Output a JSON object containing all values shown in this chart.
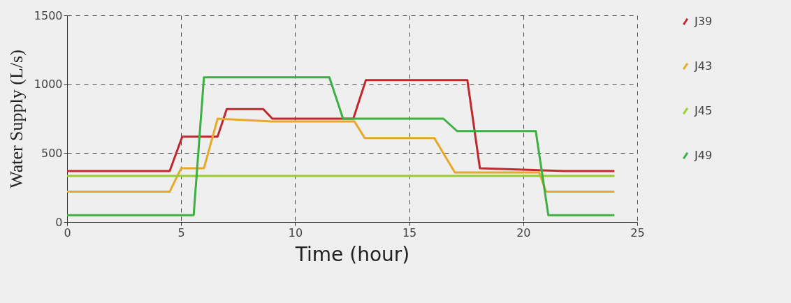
{
  "chart_data": {
    "type": "line",
    "xlabel": "Time (hour)",
    "ylabel": "Water Supply (L/s)",
    "xlim": [
      0,
      25
    ],
    "xticks": [
      0,
      5,
      10,
      15,
      20,
      25
    ],
    "ylim": [
      0,
      1500
    ],
    "yticks": [
      0,
      500,
      1000,
      1500
    ],
    "grid": true,
    "legend": "right",
    "line_style": "solid",
    "marker": "none",
    "series": [
      {
        "name": "J39",
        "color": "#c0282e",
        "x": [
          0,
          4.5,
          5.05,
          6.6,
          7.0,
          8.6,
          9.0,
          12.55,
          13.1,
          17.55,
          18.1,
          21.8,
          24
        ],
        "values": [
          370,
          370,
          620,
          620,
          820,
          820,
          750,
          750,
          1030,
          1030,
          390,
          370,
          370
        ]
      },
      {
        "name": "J43",
        "color": "#e8a92a",
        "x": [
          0,
          4.5,
          5.0,
          6.0,
          6.6,
          9.0,
          12.6,
          13.05,
          16.1,
          17.0,
          20.7,
          21.0,
          24
        ],
        "values": [
          220,
          220,
          390,
          390,
          750,
          730,
          730,
          610,
          610,
          360,
          360,
          220,
          220
        ]
      },
      {
        "name": "J45",
        "color": "#9acd32",
        "x": [
          0,
          24
        ],
        "values": [
          335,
          335
        ]
      },
      {
        "name": "J49",
        "color": "#3cb043",
        "x": [
          0,
          5.55,
          6.0,
          11.5,
          12.1,
          16.5,
          17.1,
          20.55,
          21.1,
          24
        ],
        "values": [
          50,
          50,
          1050,
          1050,
          750,
          750,
          660,
          660,
          50,
          50
        ]
      }
    ]
  }
}
